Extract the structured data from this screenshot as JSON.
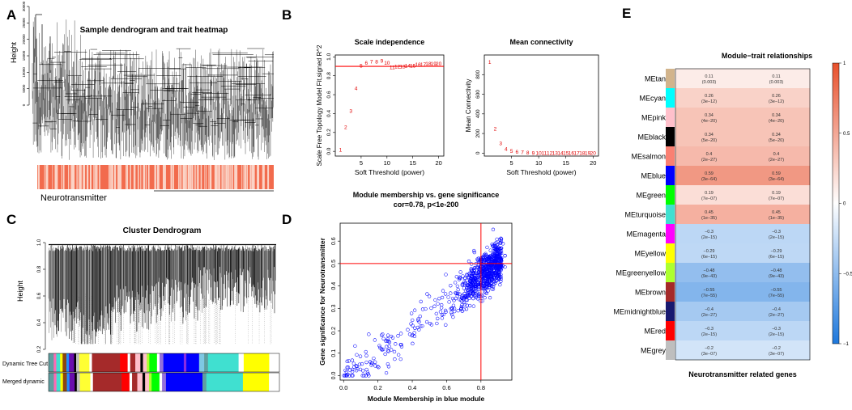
{
  "panel_letters": [
    "A",
    "B",
    "C",
    "D",
    "E"
  ],
  "panelA": {
    "title": "Sample dendrogram and trait heatmap",
    "ylabel": "Height",
    "yticks": [
      "0",
      "5000",
      "10000",
      "15000",
      "20000",
      "25000",
      "30000"
    ],
    "trait_label": "Neurotransmitter",
    "colors": {
      "bar_main": "#f26b4d",
      "bar_light": "#fbd3c6"
    }
  },
  "panelB1": {
    "chart_data": {
      "type": "scatter",
      "title": "Scale independence",
      "xlabel": "Soft Threshold (power)",
      "ylabel": "Scale Free Topology Model Fit,signed R^2",
      "xticks": [
        "5",
        "10",
        "15",
        "20"
      ],
      "yticks": [
        "0.0",
        "0.2",
        "0.4",
        "0.6",
        "0.8",
        "1.0"
      ],
      "xlim": [
        0,
        21
      ],
      "ylim": [
        -0.05,
        1.02
      ],
      "hline": 0.9,
      "points": [
        {
          "x": 1,
          "y": 0.02,
          "label": "1"
        },
        {
          "x": 2,
          "y": 0.26,
          "label": "2"
        },
        {
          "x": 3,
          "y": 0.43,
          "label": "3"
        },
        {
          "x": 4,
          "y": 0.67,
          "label": "4"
        },
        {
          "x": 5,
          "y": 0.91,
          "label": "5"
        },
        {
          "x": 6,
          "y": 0.94,
          "label": "6"
        },
        {
          "x": 7,
          "y": 0.95,
          "label": "7"
        },
        {
          "x": 8,
          "y": 0.95,
          "label": "8"
        },
        {
          "x": 9,
          "y": 0.96,
          "label": "9"
        },
        {
          "x": 10,
          "y": 0.94,
          "label": "10"
        },
        {
          "x": 11,
          "y": 0.89,
          "label": "11"
        },
        {
          "x": 12,
          "y": 0.9,
          "label": "12"
        },
        {
          "x": 13,
          "y": 0.9,
          "label": "13"
        },
        {
          "x": 14,
          "y": 0.91,
          "label": "14"
        },
        {
          "x": 15,
          "y": 0.91,
          "label": "15"
        },
        {
          "x": 16,
          "y": 0.92,
          "label": "16"
        },
        {
          "x": 17,
          "y": 0.92,
          "label": "17"
        },
        {
          "x": 18,
          "y": 0.93,
          "label": "18"
        },
        {
          "x": 19,
          "y": 0.93,
          "label": "19"
        },
        {
          "x": 20,
          "y": 0.93,
          "label": "20"
        }
      ]
    }
  },
  "panelB2": {
    "chart_data": {
      "type": "scatter",
      "title": "Mean connectivity",
      "xlabel": "Soft Threshold (power)",
      "ylabel": "Mean Connectivity",
      "xticks": [
        "5",
        "10",
        "15",
        "20"
      ],
      "yticks": [
        "0",
        "200",
        "400",
        "600",
        "800"
      ],
      "xlim": [
        0,
        21
      ],
      "ylim": [
        -30,
        1000
      ],
      "points": [
        {
          "x": 1,
          "y": 930,
          "label": "1"
        },
        {
          "x": 2,
          "y": 250,
          "label": "2"
        },
        {
          "x": 3,
          "y": 100,
          "label": "3"
        },
        {
          "x": 4,
          "y": 45,
          "label": "4"
        },
        {
          "x": 5,
          "y": 25,
          "label": "5"
        },
        {
          "x": 6,
          "y": 15,
          "label": "6"
        },
        {
          "x": 7,
          "y": 10,
          "label": "7"
        },
        {
          "x": 8,
          "y": 7,
          "label": "8"
        },
        {
          "x": 9,
          "y": 5,
          "label": "9"
        },
        {
          "x": 10,
          "y": 4,
          "label": "10"
        },
        {
          "x": 11,
          "y": 3,
          "label": "11"
        },
        {
          "x": 12,
          "y": 3,
          "label": "12"
        },
        {
          "x": 13,
          "y": 2,
          "label": "13"
        },
        {
          "x": 14,
          "y": 2,
          "label": "14"
        },
        {
          "x": 15,
          "y": 2,
          "label": "15"
        },
        {
          "x": 16,
          "y": 2,
          "label": "16"
        },
        {
          "x": 17,
          "y": 2,
          "label": "17"
        },
        {
          "x": 18,
          "y": 1,
          "label": "18"
        },
        {
          "x": 19,
          "y": 1,
          "label": "19"
        },
        {
          "x": 20,
          "y": 1,
          "label": "20"
        }
      ]
    }
  },
  "panelC": {
    "title": "Cluster Dendrogram",
    "ylabel": "Height",
    "yticks": [
      "0.2",
      "0.4",
      "0.6",
      "0.8",
      "1.0"
    ],
    "row_labels": [
      "Dynamic Tree Cut",
      "Merged dynamic"
    ],
    "dynamic_segments": [
      {
        "w": 2,
        "c": "#5f9ea0"
      },
      {
        "w": 1,
        "c": "#ff69b4"
      },
      {
        "w": 1.5,
        "c": "#40e0d0"
      },
      {
        "w": 1,
        "c": "#ffff00"
      },
      {
        "w": 1.5,
        "c": "#8b4513"
      },
      {
        "w": 1,
        "c": "#1e90ff"
      },
      {
        "w": 2,
        "c": "#6a0dad"
      },
      {
        "w": 0.8,
        "c": "#000000"
      },
      {
        "w": 1.2,
        "c": "#c0c0c0"
      },
      {
        "w": 4,
        "c": "#ffff33"
      },
      {
        "w": 1,
        "c": "#ffffff"
      },
      {
        "w": 11,
        "c": "#a52a2a"
      },
      {
        "w": 3,
        "c": "#ff0000"
      },
      {
        "w": 1,
        "c": "#ffffff"
      },
      {
        "w": 2,
        "c": "#a52a2a"
      },
      {
        "w": 2,
        "c": "#ffc0cb"
      },
      {
        "w": 1,
        "c": "#000000"
      },
      {
        "w": 1.5,
        "c": "#ffc0cb"
      },
      {
        "w": 1,
        "c": "#adff2f"
      },
      {
        "w": 3,
        "c": "#00ff00"
      },
      {
        "w": 1,
        "c": "#ffffff"
      },
      {
        "w": 1.5,
        "c": "#9370db"
      },
      {
        "w": 8,
        "c": "#0000ff"
      },
      {
        "w": 1,
        "c": "#8a2be2"
      },
      {
        "w": 5,
        "c": "#0000ff"
      },
      {
        "w": 2,
        "c": "#7ec8e3"
      },
      {
        "w": 1.5,
        "c": "#5f9ea0"
      },
      {
        "w": 12,
        "c": "#40e0d0"
      },
      {
        "w": 2,
        "c": "#ffffff"
      },
      {
        "w": 10,
        "c": "#ffff00"
      },
      {
        "w": 4,
        "c": "#ffffff"
      }
    ],
    "merged_segments": [
      {
        "w": 2,
        "c": "#5f9ea0"
      },
      {
        "w": 1,
        "c": "#ff69b4"
      },
      {
        "w": 1.5,
        "c": "#40e0d0"
      },
      {
        "w": 1,
        "c": "#ffff00"
      },
      {
        "w": 1.5,
        "c": "#8b4513"
      },
      {
        "w": 1,
        "c": "#1e90ff"
      },
      {
        "w": 2,
        "c": "#6a0dad"
      },
      {
        "w": 0.8,
        "c": "#000000"
      },
      {
        "w": 1.2,
        "c": "#c0c0c0"
      },
      {
        "w": 4,
        "c": "#ffff33"
      },
      {
        "w": 1,
        "c": "#ffffff"
      },
      {
        "w": 11,
        "c": "#a52a2a"
      },
      {
        "w": 3,
        "c": "#ff0000"
      },
      {
        "w": 1,
        "c": "#ffffff"
      },
      {
        "w": 2,
        "c": "#a52a2a"
      },
      {
        "w": 2,
        "c": "#ffc0cb"
      },
      {
        "w": 1,
        "c": "#000000"
      },
      {
        "w": 1.5,
        "c": "#ffc0cb"
      },
      {
        "w": 1,
        "c": "#adff2f"
      },
      {
        "w": 3,
        "c": "#00ff00"
      },
      {
        "w": 1,
        "c": "#ffffff"
      },
      {
        "w": 1.5,
        "c": "#9370db"
      },
      {
        "w": 14,
        "c": "#0000ff"
      },
      {
        "w": 1.5,
        "c": "#5f9ea0"
      },
      {
        "w": 14,
        "c": "#40e0d0"
      },
      {
        "w": 10,
        "c": "#ffff00"
      },
      {
        "w": 4,
        "c": "#ffffff"
      }
    ]
  },
  "panelD": {
    "title": "Module membership vs. gene significance",
    "subtitle": "cor=0.78, p<1e-200",
    "chart_data": {
      "type": "scatter",
      "xlabel": "Module Membership in blue module",
      "ylabel": "Gene significance for  Neurotransmitter",
      "xticks": [
        "0.0",
        "0.2",
        "0.4",
        "0.6",
        "0.8"
      ],
      "yticks": [
        "0.0",
        "0.1",
        "0.2",
        "0.3",
        "0.4",
        "0.5",
        "0.6"
      ],
      "xlim": [
        -0.02,
        0.98
      ],
      "ylim": [
        -0.02,
        0.68
      ],
      "vline": 0.8,
      "hline": 0.5,
      "n_points": 900,
      "trend_slope": 0.58,
      "trend_intercept": -0.02,
      "colors": {
        "points": "#0000ff",
        "lines": "#ff0000"
      }
    }
  },
  "panelE": {
    "title": "Module−trait relationships",
    "xlabel": "Neurotransmitter related genes",
    "legend_ticks": [
      "1",
      "0.5",
      "0",
      "−0.5",
      "−1"
    ],
    "colors": {
      "neg": "#1e78dc",
      "mid": "#ffffff",
      "pos": "#e8502c"
    },
    "chart_data": {
      "type": "heatmap",
      "columns": 2,
      "rows": [
        {
          "module": "MEtan",
          "swatch": "#d2b48c",
          "cor": 0.11,
          "cor_text": "0.11",
          "p": "(0.003)"
        },
        {
          "module": "MEcyan",
          "swatch": "#00ffff",
          "cor": 0.26,
          "cor_text": "0.26",
          "p": "(3e−12)"
        },
        {
          "module": "MEpink",
          "swatch": "#ffc0cb",
          "cor": 0.34,
          "cor_text": "0.34",
          "p": "(4e−20)"
        },
        {
          "module": "MEblack",
          "swatch": "#000000",
          "cor": 0.34,
          "cor_text": "0.34",
          "p": "(5e−20)"
        },
        {
          "module": "MEsalmon",
          "swatch": "#fa8072",
          "cor": 0.4,
          "cor_text": "0.4",
          "p": "(2e−27)"
        },
        {
          "module": "MEblue",
          "swatch": "#0000ff",
          "cor": 0.59,
          "cor_text": "0.59",
          "p": "(3e−64)"
        },
        {
          "module": "MEgreen",
          "swatch": "#00ff00",
          "cor": 0.19,
          "cor_text": "0.19",
          "p": "(7e−07)"
        },
        {
          "module": "MEturquoise",
          "swatch": "#40e0d0",
          "cor": 0.45,
          "cor_text": "0.45",
          "p": "(1e−35)"
        },
        {
          "module": "MEmagenta",
          "swatch": "#ff00ff",
          "cor": -0.3,
          "cor_text": "−0.3",
          "p": "(2e−15)"
        },
        {
          "module": "MEyellow",
          "swatch": "#ffff00",
          "cor": -0.29,
          "cor_text": "−0.29",
          "p": "(6e−15)"
        },
        {
          "module": "MEgreenyellow",
          "swatch": "#adff2f",
          "cor": -0.48,
          "cor_text": "−0.48",
          "p": "(9e−43)"
        },
        {
          "module": "MEbrown",
          "swatch": "#a52a2a",
          "cor": -0.55,
          "cor_text": "−0.55",
          "p": "(7e−55)"
        },
        {
          "module": "MEmidnightblue",
          "swatch": "#191970",
          "cor": -0.4,
          "cor_text": "−0.4",
          "p": "(2e−27)"
        },
        {
          "module": "MEred",
          "swatch": "#ff0000",
          "cor": -0.3,
          "cor_text": "−0.3",
          "p": "(2e−15)"
        },
        {
          "module": "MEgrey",
          "swatch": "#bebebe",
          "cor": -0.2,
          "cor_text": "−0.2",
          "p": "(3e−07)"
        }
      ]
    }
  }
}
